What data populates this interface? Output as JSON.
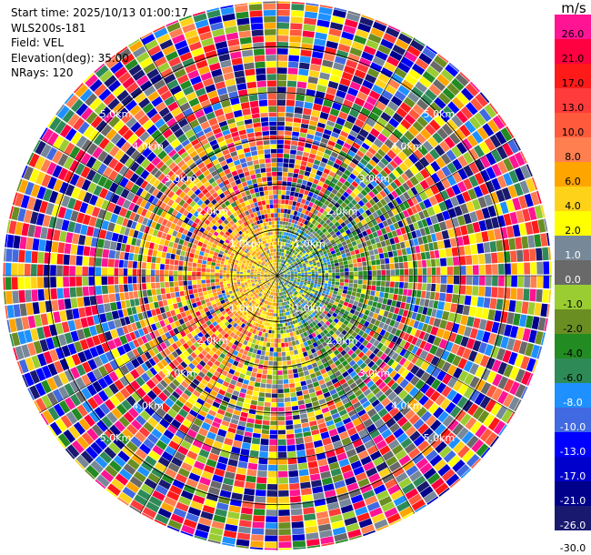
{
  "info": {
    "start_time": "Start time: 2025/10/13 01:00:17",
    "instrument": "WLS200s-181",
    "field": "Field: VEL",
    "elevation": "Elevation(deg): 35.00",
    "nrays": "NRays: 120"
  },
  "colorbar": {
    "unit": "m/s",
    "levels": [
      {
        "label": "26.0",
        "color": "#ff1493"
      },
      {
        "label": "21.0",
        "color": "#ff0040"
      },
      {
        "label": "17.0",
        "color": "#ff1a1a"
      },
      {
        "label": "13.0",
        "color": "#ff3b3b"
      },
      {
        "label": "10.0",
        "color": "#ff5a3c"
      },
      {
        "label": "8.0",
        "color": "#ff7f50"
      },
      {
        "label": "6.0",
        "color": "#ffa500"
      },
      {
        "label": "4.0",
        "color": "#ffd21a"
      },
      {
        "label": "2.0",
        "color": "#ffff00"
      },
      {
        "label": "1.0",
        "color": "#778899"
      },
      {
        "label": "0.0",
        "color": "#696969"
      },
      {
        "label": "-1.0",
        "color": "#9acd32"
      },
      {
        "label": "-2.0",
        "color": "#6b8e23"
      },
      {
        "label": "-4.0",
        "color": "#228b22"
      },
      {
        "label": "-6.0",
        "color": "#2e8b57"
      },
      {
        "label": "-8.0",
        "color": "#1e90ff"
      },
      {
        "label": "-10.0",
        "color": "#4169e1"
      },
      {
        "label": "-13.0",
        "color": "#0000ff"
      },
      {
        "label": "-17.0",
        "color": "#0000cd"
      },
      {
        "label": "-21.0",
        "color": "#00008b"
      },
      {
        "label": "-26.0",
        "color": "#191970"
      },
      {
        "label": "-30.0",
        "color": ""
      }
    ]
  },
  "chart_data": {
    "type": "heatmap",
    "projection": "polar (PPI)",
    "field": "VEL",
    "units": "m/s",
    "nrays": 120,
    "max_range_km": 6.0,
    "range_rings": [
      {
        "value": 1.0,
        "label": "1.0km"
      },
      {
        "value": 2.0,
        "label": "2.0km"
      },
      {
        "value": 3.0,
        "label": "3.0km"
      },
      {
        "value": 4.0,
        "label": "4.0km"
      },
      {
        "value": 5.0,
        "label": "5.0km"
      }
    ],
    "ring_label_azimuths_deg": [
      45,
      135,
      225,
      315
    ],
    "spokes_deg": [
      0,
      30,
      60,
      90,
      120,
      150,
      180,
      210,
      240,
      270,
      300,
      330
    ],
    "sectors": [
      {
        "azimuth_from": 0,
        "azimuth_to": 180,
        "range_to": 1.2,
        "dominant": "-6.0 to 1.0"
      },
      {
        "azimuth_from": 180,
        "azimuth_to": 360,
        "range_to": 1.2,
        "dominant": "2.0 to 8.0"
      },
      {
        "azimuth_from": 30,
        "azimuth_to": 160,
        "range_from": 1.2,
        "range_to": 3.5,
        "dominant": "-6.0 to -1.0"
      },
      {
        "azimuth_from": 200,
        "azimuth_to": 340,
        "range_from": 1.2,
        "range_to": 3.5,
        "dominant": "2.0 to 10.0"
      },
      {
        "range_from": 3.5,
        "range_to": 6.0,
        "dominant": "noise (-30.0 to 26.0)"
      }
    ]
  }
}
